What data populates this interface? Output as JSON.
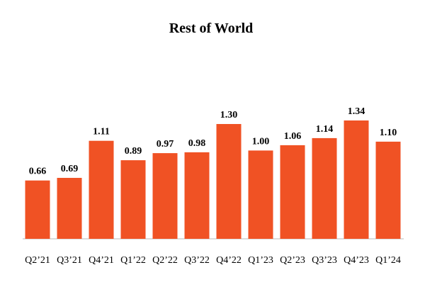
{
  "chart_data": {
    "type": "bar",
    "title": "Rest of World",
    "categories": [
      "Q2’21",
      "Q3’21",
      "Q4’21",
      "Q1’22",
      "Q2’22",
      "Q3’22",
      "Q4’22",
      "Q1’23",
      "Q2’23",
      "Q3’23",
      "Q4’23",
      "Q1’24"
    ],
    "values": [
      0.66,
      0.69,
      1.11,
      0.89,
      0.97,
      0.98,
      1.3,
      1.0,
      1.06,
      1.14,
      1.34,
      1.1
    ],
    "value_labels": [
      "0.66",
      "0.69",
      "1.11",
      "0.89",
      "0.97",
      "0.98",
      "1.30",
      "1.00",
      "1.06",
      "1.14",
      "1.34",
      "1.10"
    ],
    "xlabel": "",
    "ylabel": "",
    "ylim": [
      0,
      1.34
    ],
    "grid": false,
    "legend": "none",
    "colors": {
      "bar": "#F05224",
      "axis": "#D0D0D0",
      "text": "#000000"
    }
  }
}
